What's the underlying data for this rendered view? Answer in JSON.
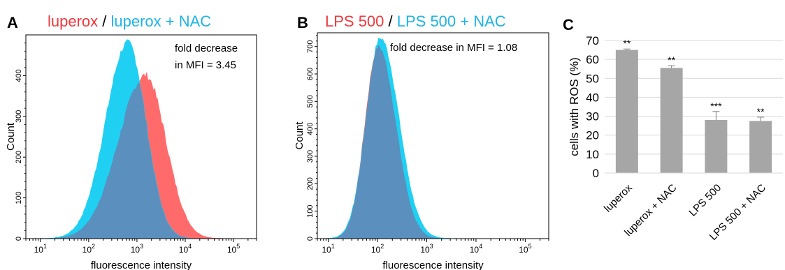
{
  "chart_data": [
    {
      "panel_label": "A",
      "type": "area",
      "title_parts": [
        {
          "text": "luperox",
          "color": "#f0373c"
        },
        {
          "text": " / ",
          "color": "#000000"
        },
        {
          "text": "luperox + NAC",
          "color": "#1eb4e6"
        }
      ],
      "xlabel": "fluorescence intensity",
      "ylabel": "Count",
      "x_scale": "log",
      "xlim": [
        5,
        300000
      ],
      "ylim": [
        0,
        500
      ],
      "x_ticks": [
        {
          "base": "10",
          "exp": "1",
          "value": 10
        },
        {
          "base": "10",
          "exp": "2",
          "value": 100
        },
        {
          "base": "10",
          "exp": "3",
          "value": 1000
        },
        {
          "base": "10",
          "exp": "4",
          "value": 10000
        },
        {
          "base": "10",
          "exp": "5",
          "value": 100000
        }
      ],
      "y_ticks": [
        "0",
        "100",
        "200",
        "300",
        "400"
      ],
      "annotation": [
        "fold decrease",
        "in MFI = 3.45"
      ],
      "series": [
        {
          "name": "luperox",
          "color": "#ff6b6b",
          "peak_x": 1500,
          "peak_y": 400,
          "spread_left": 0.56,
          "spread_right": 0.42
        },
        {
          "name": "luperox + NAC",
          "color": "#1fd0f2",
          "peak_x": 650,
          "peak_y": 480,
          "spread_left": 0.46,
          "spread_right": 0.37
        }
      ],
      "overlap_color": "#5b8fbd"
    },
    {
      "panel_label": "B",
      "type": "area",
      "title_parts": [
        {
          "text": "LPS 500",
          "color": "#f0373c"
        },
        {
          "text": " / ",
          "color": "#000000"
        },
        {
          "text": "LPS 500 + NAC",
          "color": "#1eb4e6"
        }
      ],
      "xlabel": "fluorescence intensity",
      "ylabel": "Count",
      "x_scale": "log",
      "xlim": [
        6,
        300000
      ],
      "ylim": [
        0,
        750
      ],
      "x_ticks": [
        {
          "base": "10",
          "exp": "1",
          "value": 10
        },
        {
          "base": "10",
          "exp": "2",
          "value": 100
        },
        {
          "base": "10",
          "exp": "3",
          "value": 1000
        },
        {
          "base": "10",
          "exp": "4",
          "value": 10000
        },
        {
          "base": "10",
          "exp": "5",
          "value": 100000
        }
      ],
      "y_ticks": [
        "0",
        "100",
        "200",
        "300",
        "400",
        "500",
        "600",
        "700"
      ],
      "annotation": [
        "fold decrease in MFI = 1.08"
      ],
      "series": [
        {
          "name": "LPS 500",
          "color": "#ff3b3b",
          "peak_x": 105,
          "peak_y": 700,
          "spread_left": 0.27,
          "spread_right": 0.35
        },
        {
          "name": "LPS 500 + NAC",
          "color": "#1fd0f2",
          "peak_x": 115,
          "peak_y": 730,
          "spread_left": 0.29,
          "spread_right": 0.37
        }
      ],
      "overlap_color": "#5b8fbd"
    },
    {
      "panel_label": "C",
      "type": "bar",
      "ylabel": "cells with ROS (%)",
      "categories": [
        "luperox",
        "luperox + NAC",
        "LPS 500",
        "LPS 500 + NAC"
      ],
      "values": [
        65,
        55.5,
        28,
        27.5
      ],
      "errors": [
        0.5,
        1.2,
        4.5,
        2
      ],
      "significance": [
        "**",
        "**",
        "***",
        "**"
      ],
      "ylim": [
        0,
        70
      ],
      "y_ticks": [
        "0",
        "10",
        "20",
        "30",
        "40",
        "50",
        "60",
        "70"
      ],
      "bar_color": "#a6a6a6",
      "grid": true
    }
  ]
}
